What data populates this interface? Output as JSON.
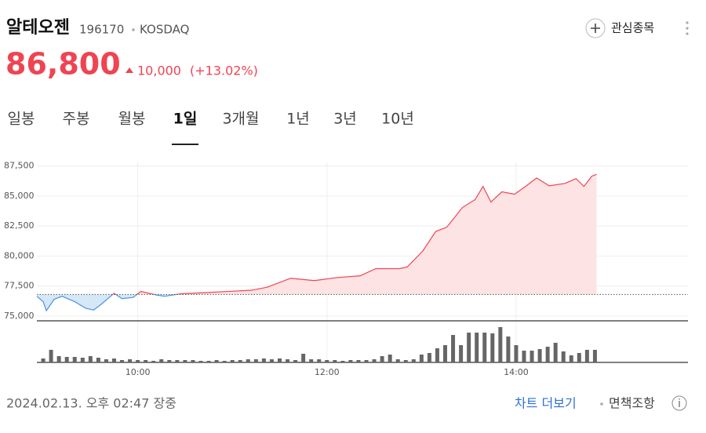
{
  "header": {
    "name": "알테오젠",
    "code": "196170",
    "market": "KOSDAQ",
    "watch": "관심종목"
  },
  "quote": {
    "price": "86,800",
    "change": "10,000",
    "change_pct": "(+13.02%)"
  },
  "tabs": {
    "items": [
      "일봉",
      "주봉",
      "월봉",
      "1일",
      "3개월",
      "1년",
      "3년",
      "10년"
    ],
    "active": 3
  },
  "chart_data": {
    "type": "line",
    "up_color": "#ef4452",
    "down_color": "#4a90e2",
    "up_fill": "#fde3e3",
    "down_fill": "#d5e8f8",
    "baseline": 76800,
    "xlim": [
      536,
      949
    ],
    "ylim": [
      74800,
      87800
    ],
    "xticks": [
      {
        "value": 600,
        "label": "10:00"
      },
      {
        "value": 720,
        "label": "12:00"
      },
      {
        "value": 840,
        "label": "14:00"
      }
    ],
    "yticks": [
      {
        "value": 75000,
        "label": "75,000"
      },
      {
        "value": 77500,
        "label": "77,500"
      },
      {
        "value": 80000,
        "label": "80,000"
      },
      {
        "value": 82500,
        "label": "82,500"
      },
      {
        "value": 85000,
        "label": "85,000"
      },
      {
        "value": 87500,
        "label": "87,500"
      }
    ],
    "grid": true,
    "series": [
      {
        "color": "#ef4452",
        "x": [
          536,
          540,
          542,
          547,
          552,
          560,
          567,
          572,
          577,
          585,
          590,
          597,
          602,
          612,
          617,
          627,
          642,
          657,
          672,
          682,
          697,
          712,
          726,
          741,
          751,
          766,
          771,
          781,
          789,
          796,
          806,
          814,
          819,
          824,
          831,
          839,
          846,
          853,
          861,
          871,
          878,
          883,
          888,
          891
        ],
        "values": [
          76650,
          76200,
          75450,
          76400,
          76650,
          76200,
          75650,
          75500,
          76000,
          76900,
          76450,
          76550,
          77050,
          76750,
          76650,
          76850,
          76950,
          77050,
          77150,
          77400,
          78150,
          77950,
          78200,
          78350,
          78950,
          78950,
          79100,
          80450,
          82050,
          82400,
          84050,
          84700,
          85800,
          84500,
          85350,
          85150,
          85800,
          86500,
          85850,
          86050,
          86450,
          85800,
          86650,
          86800
        ]
      }
    ],
    "volume": {
      "color": "#666666",
      "ylim": [
        0,
        50
      ],
      "x": [
        540,
        545,
        550,
        555,
        560,
        565,
        570,
        575,
        580,
        585,
        590,
        595,
        600,
        605,
        610,
        615,
        620,
        625,
        630,
        635,
        640,
        645,
        650,
        655,
        660,
        665,
        670,
        675,
        680,
        685,
        690,
        695,
        700,
        705,
        710,
        715,
        720,
        725,
        730,
        735,
        740,
        745,
        750,
        755,
        760,
        765,
        770,
        775,
        780,
        785,
        790,
        795,
        800,
        805,
        810,
        815,
        820,
        825,
        830,
        835,
        840,
        845,
        850,
        855,
        860,
        865,
        870,
        875,
        880,
        885,
        890
      ],
      "values": [
        5,
        16,
        8,
        7,
        7,
        6,
        8,
        6,
        4,
        5,
        3,
        4,
        3,
        3,
        2,
        4,
        3,
        3,
        3,
        3,
        2,
        2,
        3,
        2,
        3,
        3,
        4,
        4,
        5,
        4,
        5,
        4,
        3,
        11,
        4,
        4,
        3,
        3,
        2,
        3,
        3,
        3,
        4,
        8,
        10,
        4,
        3,
        4,
        10,
        12,
        18,
        22,
        35,
        22,
        38,
        38,
        38,
        37,
        45,
        33,
        22,
        15,
        15,
        17,
        20,
        25,
        14,
        9,
        12,
        16,
        16
      ]
    }
  },
  "footer": {
    "timestamp": "2024.02.13. 오후 02:47 장중",
    "more": "차트 더보기",
    "disclaimer": "면책조항"
  }
}
